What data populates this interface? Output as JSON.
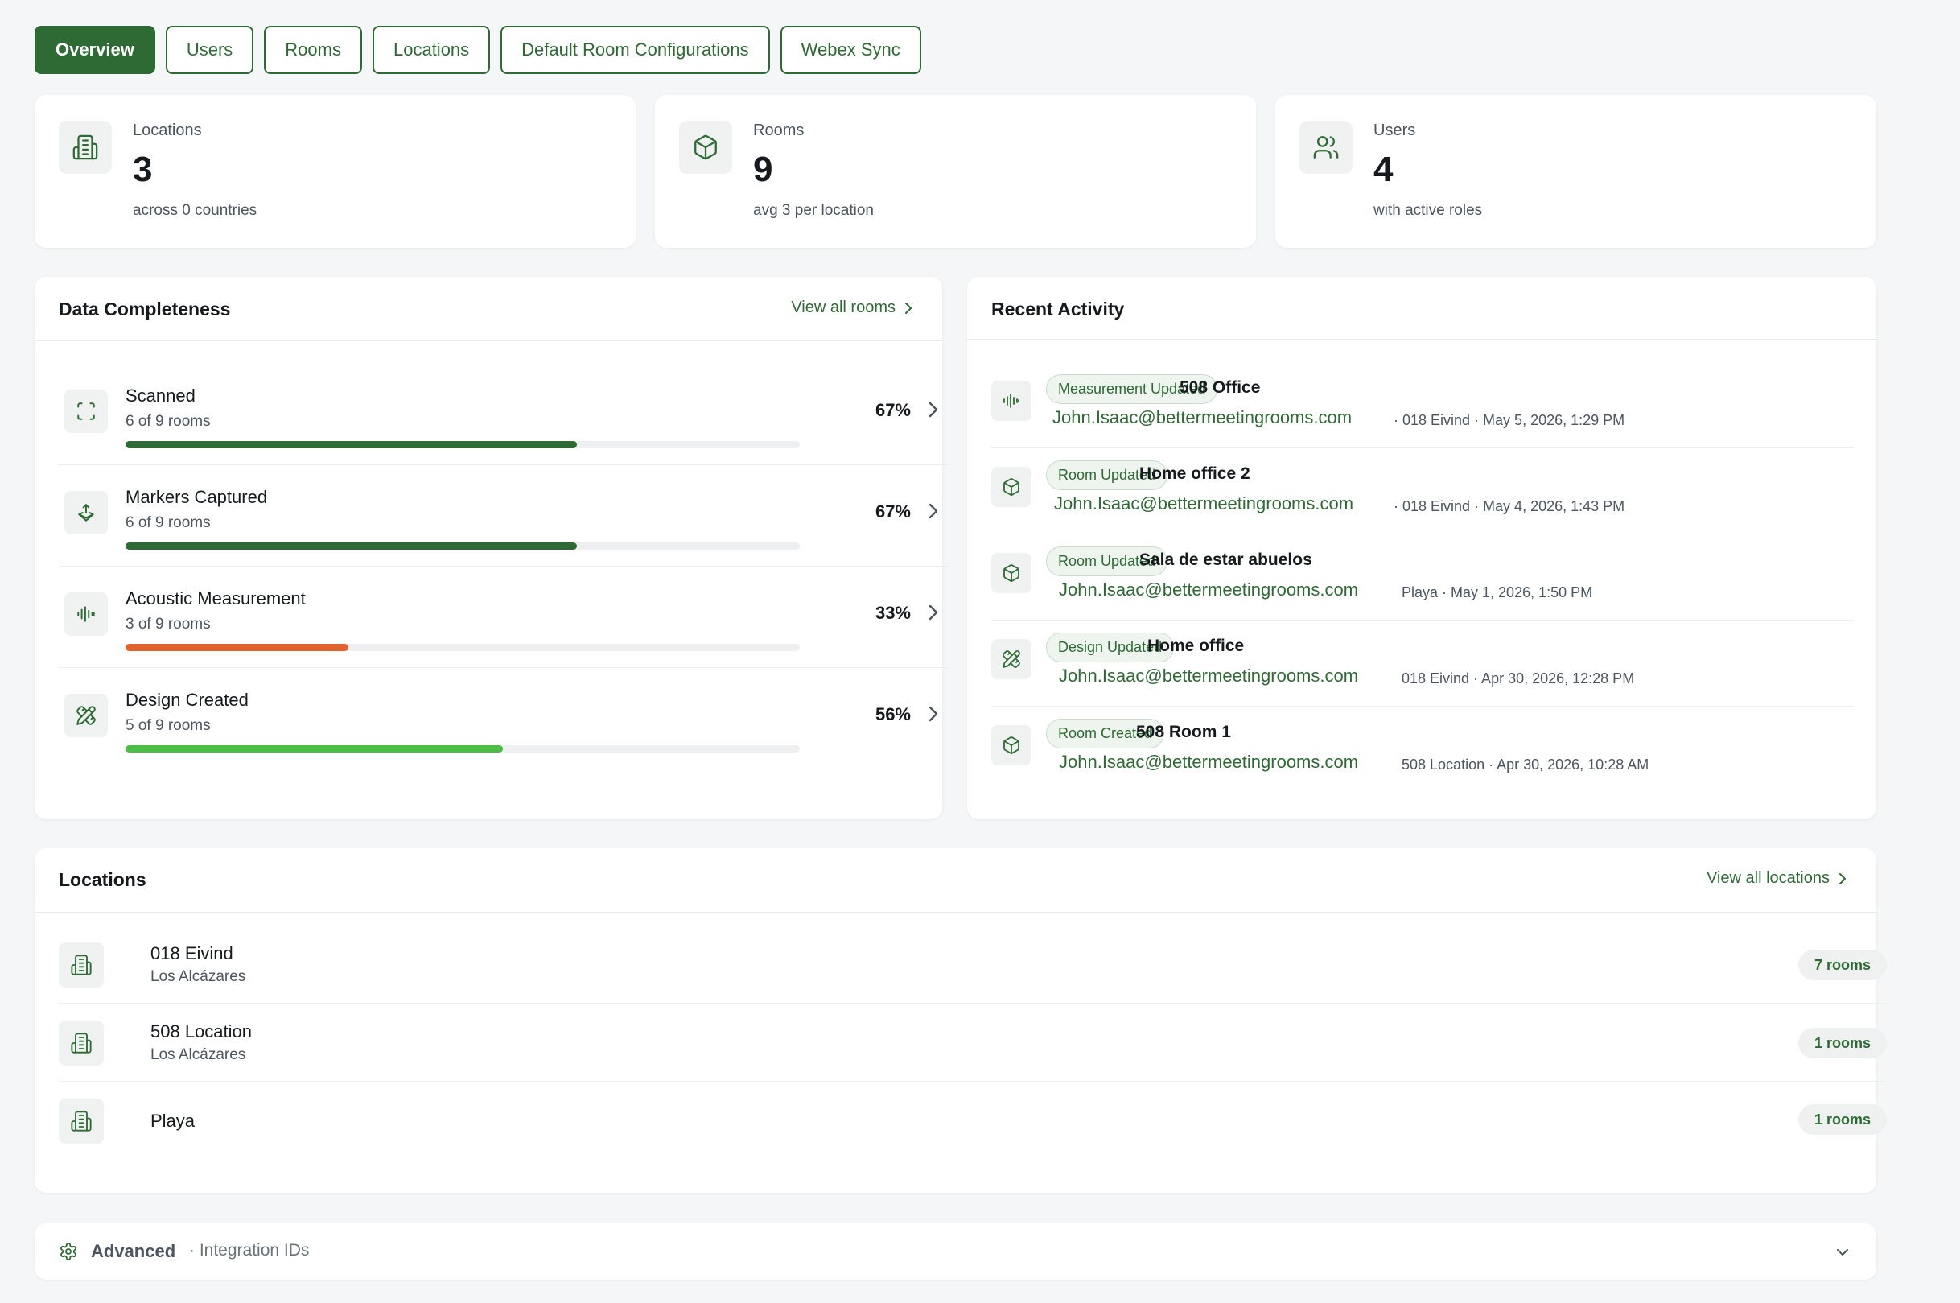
{
  "tabs": [
    {
      "label": "Overview",
      "active": true
    },
    {
      "label": "Users"
    },
    {
      "label": "Rooms"
    },
    {
      "label": "Locations"
    },
    {
      "label": "Default Room Configurations"
    },
    {
      "label": "Webex Sync"
    }
  ],
  "stats": [
    {
      "label": "Locations",
      "value": "3",
      "sub": "across 0 countries",
      "icon": "building-icon"
    },
    {
      "label": "Rooms",
      "value": "9",
      "sub": "avg 3 per location",
      "icon": "cube-icon"
    },
    {
      "label": "Users",
      "value": "4",
      "sub": "with active roles",
      "icon": "users-icon"
    }
  ],
  "completeness": {
    "title": "Data Completeness",
    "link": "View all rooms",
    "rows": [
      {
        "label": "Scanned",
        "sub": "6 of 9 rooms",
        "pct": "67%",
        "fraction": 0.67,
        "color": "#2e6b34",
        "icon": "scan-icon"
      },
      {
        "label": "Markers Captured",
        "sub": "6 of 9 rooms",
        "pct": "67%",
        "fraction": 0.67,
        "color": "#2e6b34",
        "icon": "marker-icon"
      },
      {
        "label": "Acoustic Measurement",
        "sub": "3 of 9 rooms",
        "pct": "33%",
        "fraction": 0.33,
        "color": "#e2622d",
        "icon": "waveform-icon"
      },
      {
        "label": "Design Created",
        "sub": "5 of 9 rooms",
        "pct": "56%",
        "fraction": 0.56,
        "color": "#4cbd44",
        "icon": "design-icon"
      }
    ]
  },
  "activity": {
    "title": "Recent Activity",
    "items": [
      {
        "badge": "Measurement Updated",
        "title": "508 Office",
        "email": "John.Isaac@bettermeetingrooms.com",
        "meta": "· 018 Eivind · May 5, 2026, 1:29 PM",
        "icon": "waveform-icon"
      },
      {
        "badge": "Room Updated",
        "title": "Home office 2",
        "email": "John.Isaac@bettermeetingrooms.com",
        "meta": "· 018 Eivind · May 4, 2026, 1:43 PM",
        "icon": "cube-icon"
      },
      {
        "badge": "Room Updated",
        "title": "Sala de estar abuelos",
        "email": "John.Isaac@bettermeetingrooms.com",
        "meta": "Playa · May 1, 2026, 1:50 PM",
        "icon": "cube-icon"
      },
      {
        "badge": "Design Updated",
        "title": "Home office",
        "email": "John.Isaac@bettermeetingrooms.com",
        "meta": "018 Eivind · Apr 30, 2026, 12:28 PM",
        "icon": "design-icon"
      },
      {
        "badge": "Room Created",
        "title": "508 Room 1",
        "email": "John.Isaac@bettermeetingrooms.com",
        "meta": "508 Location · Apr 30, 2026, 10:28 AM",
        "icon": "cube-icon"
      }
    ]
  },
  "locations": {
    "title": "Locations",
    "link": "View all locations",
    "items": [
      {
        "name": "018 Eivind",
        "sub": "Los Alcázares",
        "rooms": "7 rooms"
      },
      {
        "name": "508 Location",
        "sub": "Los Alcázares",
        "rooms": "1 rooms"
      },
      {
        "name": "Playa",
        "sub": "",
        "rooms": "1 rooms"
      }
    ]
  },
  "advanced": {
    "label": "Advanced",
    "sub": "· Integration IDs"
  },
  "colors": {
    "accent": "#2e6b34",
    "warning": "#e2622d",
    "success": "#4cbd44"
  }
}
